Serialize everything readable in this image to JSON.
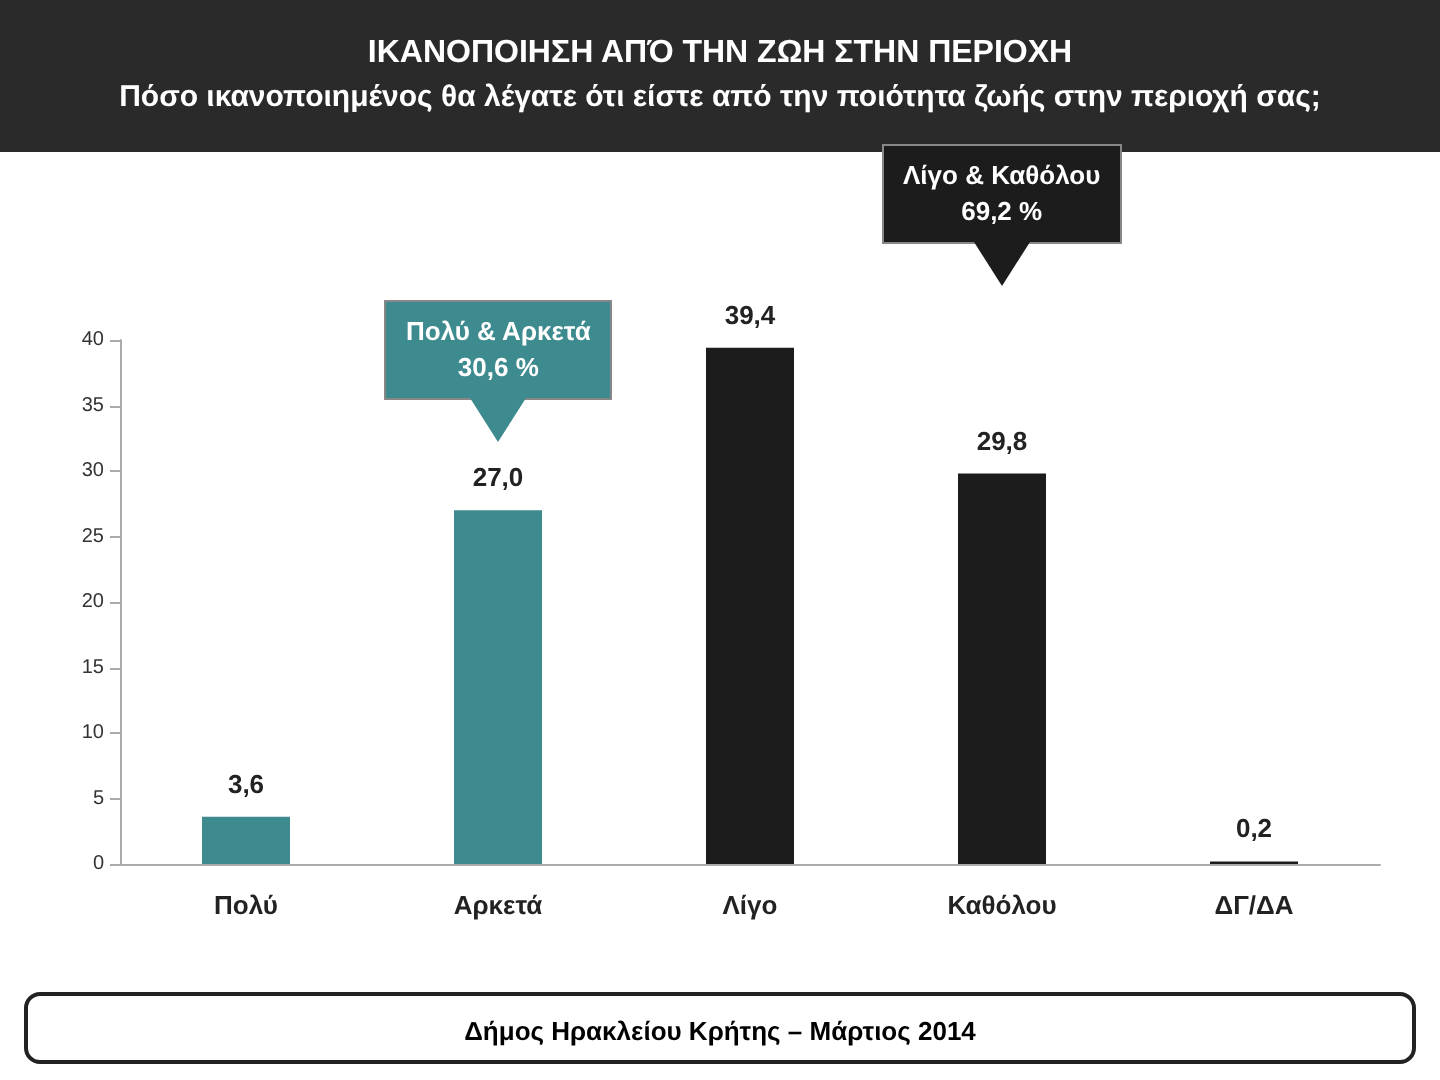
{
  "chart_data": {
    "type": "bar",
    "title": "ΙΚΑΝΟΠΟΙΗΣΗ ΑΠΌ ΤΗΝ ΖΩΗ ΣΤΗΝ ΠΕΡΙΟΧΗ",
    "subtitle": "Πόσο ικανοποιημένος θα λέγατε ότι είστε από την ποιότητα ζωής στην περιοχή σας;",
    "categories": [
      "Πολύ",
      "Αρκετά",
      "Λίγο",
      "Καθόλου",
      "ΔΓ/ΔΑ"
    ],
    "values": [
      3.6,
      27.0,
      39.4,
      29.8,
      0.2
    ],
    "value_labels": [
      "3,6",
      "27,0",
      "39,4",
      "29,8",
      "0,2"
    ],
    "colors": [
      "#3d8a8f",
      "#3d8a8f",
      "#1c1c1c",
      "#1c1c1c",
      "#1c1c1c"
    ],
    "ylim": [
      0,
      40
    ],
    "yticks": [
      0,
      5,
      10,
      15,
      20,
      25,
      30,
      35,
      40
    ],
    "grid": false,
    "annotations": [
      "Πολύ & Αρκετά\n30,6 %",
      "Λίγο & Καθόλου\n69,2 %",
      "Δήμος Ηρακλείου Κρήτης – Μάρτιος 2014"
    ]
  }
}
